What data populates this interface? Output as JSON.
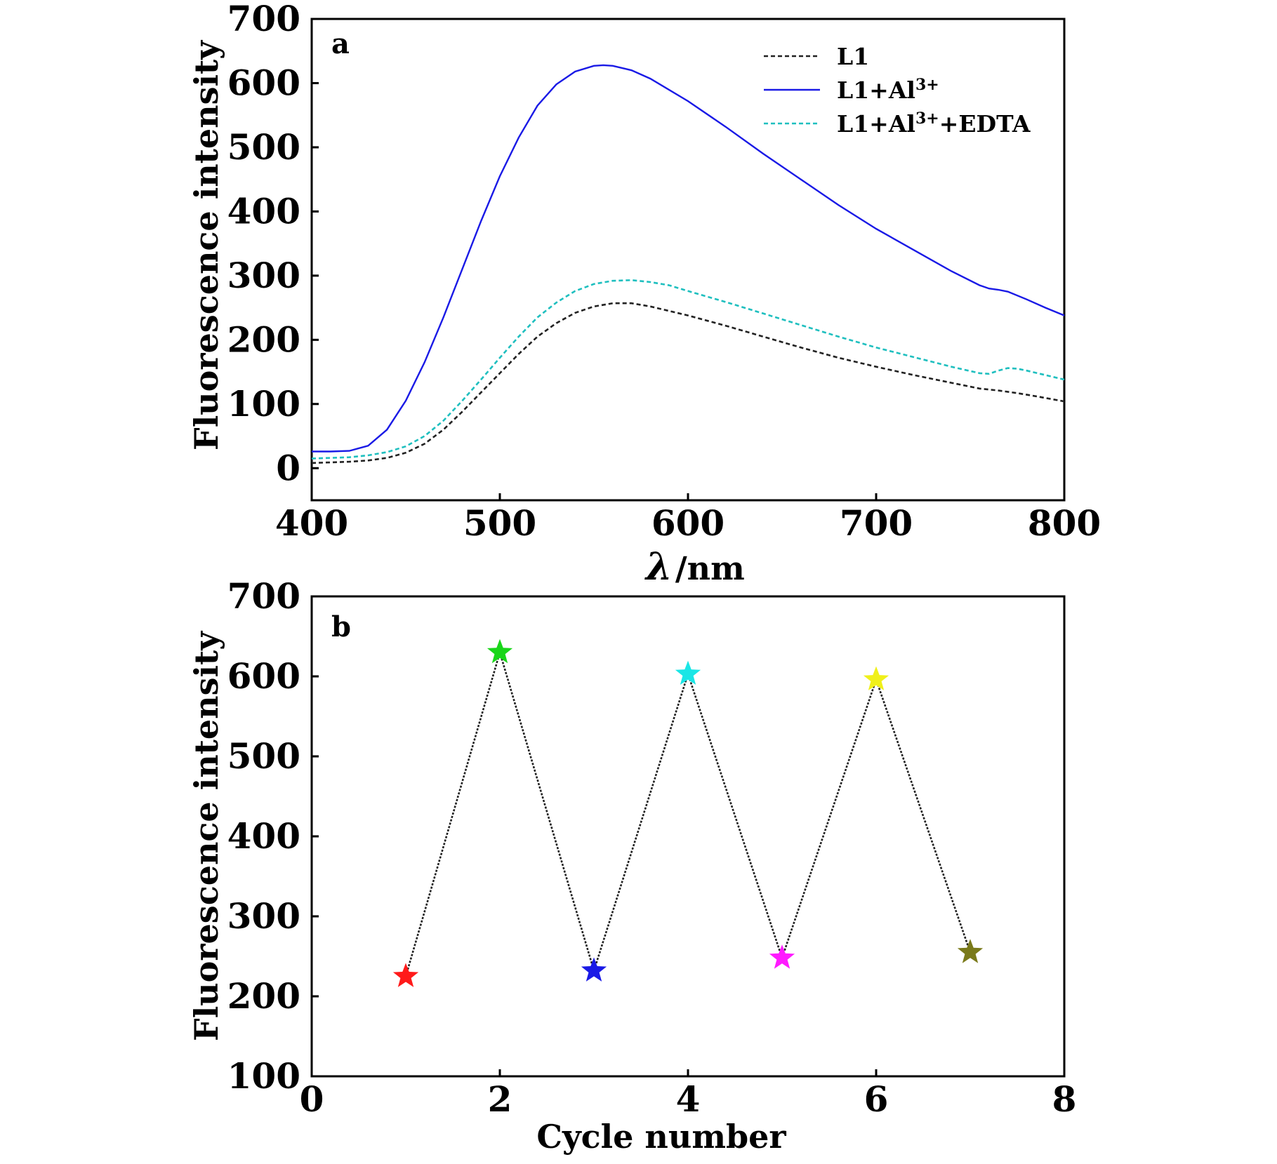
{
  "chart_data": [
    {
      "panel": "a",
      "type": "line",
      "xlabel_symbol": "λ",
      "xlabel_unit": "/nm",
      "ylabel": "Fluorescence intensity",
      "xlim": [
        400,
        800
      ],
      "ylim": [
        -50,
        700
      ],
      "xticks": [
        400,
        500,
        600,
        700,
        800
      ],
      "yticks": [
        0,
        100,
        200,
        300,
        400,
        500,
        600,
        700
      ],
      "legend_position": "top-right",
      "series": [
        {
          "name": "L1",
          "label_base": "L1",
          "label_sup": "",
          "label_tail": "",
          "color": "#222222",
          "style": "dashed",
          "x": [
            400,
            410,
            420,
            430,
            440,
            450,
            460,
            470,
            480,
            490,
            500,
            510,
            520,
            530,
            540,
            550,
            560,
            570,
            580,
            590,
            600,
            620,
            640,
            660,
            680,
            700,
            720,
            740,
            755,
            765,
            775,
            785,
            800
          ],
          "y": [
            8,
            9,
            10,
            12,
            16,
            24,
            38,
            60,
            88,
            118,
            148,
            178,
            205,
            226,
            242,
            252,
            257,
            257,
            252,
            245,
            238,
            222,
            205,
            188,
            172,
            158,
            145,
            133,
            124,
            121,
            117,
            112,
            104
          ]
        },
        {
          "name": "L1+Al3+",
          "label_base": "L1+Al",
          "label_sup": "3+",
          "label_tail": "",
          "color": "#1a1ae6",
          "style": "solid",
          "x": [
            400,
            410,
            420,
            430,
            440,
            450,
            460,
            470,
            480,
            490,
            500,
            510,
            520,
            530,
            540,
            550,
            555,
            560,
            570,
            580,
            600,
            620,
            640,
            660,
            680,
            700,
            720,
            740,
            755,
            760,
            765,
            770,
            780,
            790,
            800
          ],
          "y": [
            26,
            26,
            27,
            35,
            60,
            105,
            165,
            235,
            310,
            385,
            455,
            515,
            565,
            598,
            618,
            627,
            628,
            627,
            620,
            607,
            572,
            532,
            490,
            450,
            410,
            373,
            340,
            307,
            285,
            280,
            278,
            275,
            263,
            250,
            238
          ]
        },
        {
          "name": "L1+Al3++EDTA",
          "label_base": "L1+Al",
          "label_sup": "3+",
          "label_tail": "+EDTA",
          "color": "#1fbfbf",
          "style": "dashed",
          "x": [
            400,
            410,
            420,
            430,
            440,
            450,
            460,
            470,
            480,
            490,
            500,
            510,
            520,
            530,
            540,
            550,
            560,
            570,
            580,
            590,
            600,
            620,
            640,
            660,
            680,
            700,
            720,
            740,
            755,
            760,
            765,
            770,
            775,
            780,
            790,
            800
          ],
          "y": [
            15,
            16,
            17,
            20,
            25,
            34,
            50,
            74,
            105,
            138,
            172,
            205,
            235,
            258,
            276,
            287,
            292,
            293,
            290,
            285,
            276,
            259,
            241,
            223,
            205,
            188,
            173,
            158,
            148,
            147,
            152,
            156,
            155,
            152,
            145,
            138
          ]
        }
      ]
    },
    {
      "panel": "b",
      "type": "scatter",
      "xlabel": "Cycle number",
      "ylabel": "Fluorescence intensity",
      "xlim": [
        0,
        8
      ],
      "ylim": [
        100,
        700
      ],
      "xticks": [
        0,
        2,
        4,
        6,
        8
      ],
      "yticks": [
        100,
        200,
        300,
        400,
        500,
        600,
        700
      ],
      "marker": "star",
      "line_color": "#222222",
      "x": [
        1,
        2,
        3,
        4,
        5,
        6,
        7
      ],
      "y": [
        225,
        630,
        232,
        603,
        248,
        596,
        255
      ],
      "point_colors": [
        "#ff1a1a",
        "#1ad61a",
        "#1a1ae6",
        "#1ae6e6",
        "#ff1aff",
        "#f0f01a",
        "#7a7a1a"
      ]
    }
  ]
}
